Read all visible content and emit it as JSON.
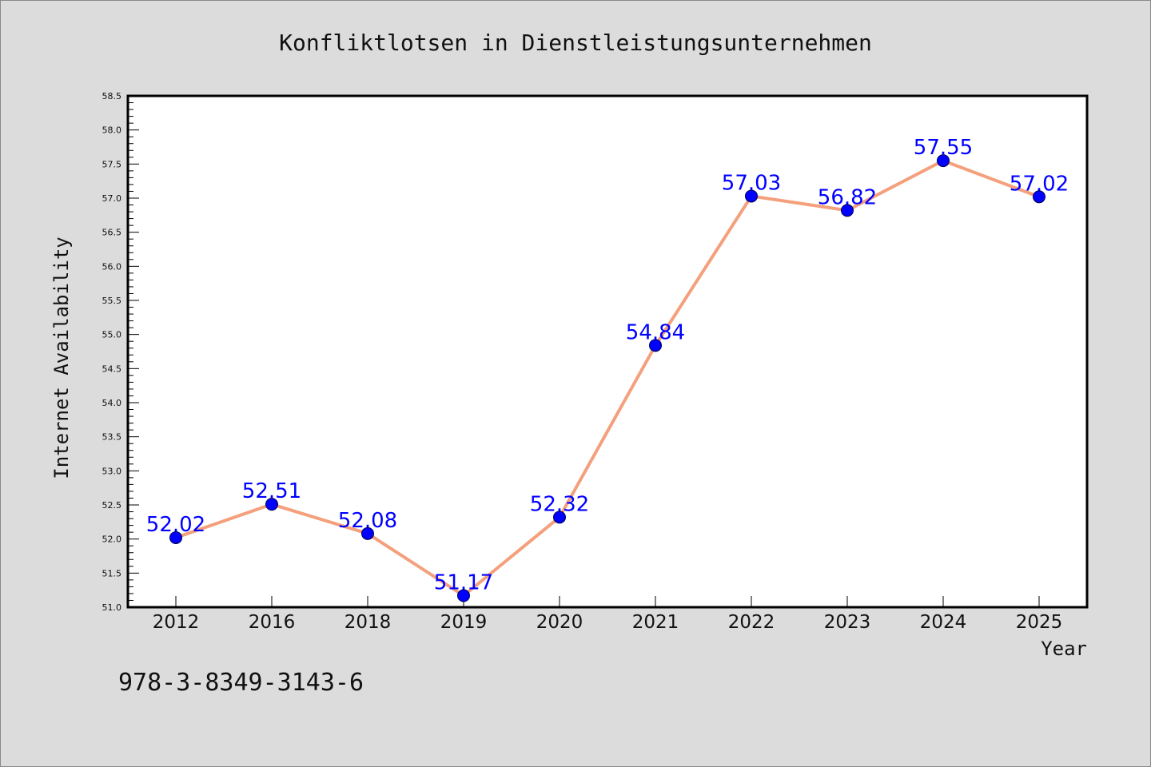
{
  "chart_data": {
    "type": "line",
    "title": "Konfliktlotsen in Dienstleistungsunternehmen",
    "xlabel": "Year",
    "ylabel": "Internet Availability",
    "categories": [
      "2012",
      "2016",
      "2018",
      "2019",
      "2020",
      "2021",
      "2022",
      "2023",
      "2024",
      "2025"
    ],
    "series": [
      {
        "values": [
          52.02,
          52.51,
          52.08,
          51.17,
          52.32,
          54.84,
          57.03,
          56.82,
          57.55,
          57.02
        ],
        "data_labels": [
          "52.02",
          "52.51",
          "52.08",
          "51.17",
          "52.32",
          "54.84",
          "57.03",
          "56.82",
          "57.55",
          "57.02"
        ]
      }
    ],
    "ylim": [
      51.0,
      58.5
    ],
    "y_major_ticks": [
      "51.0",
      "51.5",
      "52.0",
      "52.5",
      "53.0",
      "53.5",
      "54.0",
      "54.5",
      "55.0",
      "55.5",
      "56.0",
      "56.5",
      "57.0",
      "57.5",
      "58.0",
      "58.5"
    ],
    "y_minor_step": 0.1,
    "grid": false,
    "legend": "none",
    "line_color": "#f4a07c",
    "marker_color": "#0000ff",
    "label_color": "#0000ff",
    "plot_background": "#ffffff",
    "figure_background": "#dcdcdc"
  },
  "footer": {
    "isbn": "978-3-8349-3143-6"
  }
}
